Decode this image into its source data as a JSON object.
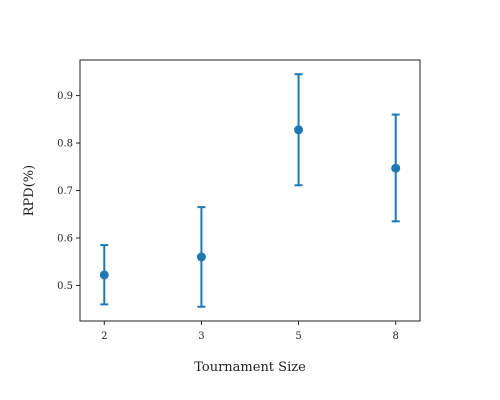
{
  "chart_data": {
    "type": "scatter",
    "title": "",
    "xlabel": "Tournament Size",
    "ylabel": "RPD(%)",
    "categories": [
      "2",
      "3",
      "5",
      "8"
    ],
    "yticks": [
      "0.5",
      "0.6",
      "0.7",
      "0.8",
      "0.9"
    ],
    "ylim": [
      0.425,
      0.975
    ],
    "grid": false,
    "series": [
      {
        "values": [
          0.522,
          0.56,
          0.828,
          0.747
        ],
        "lower": [
          0.46,
          0.455,
          0.711,
          0.635
        ],
        "upper": [
          0.585,
          0.665,
          0.945,
          0.86
        ]
      }
    ],
    "color": "#1f77b4"
  }
}
